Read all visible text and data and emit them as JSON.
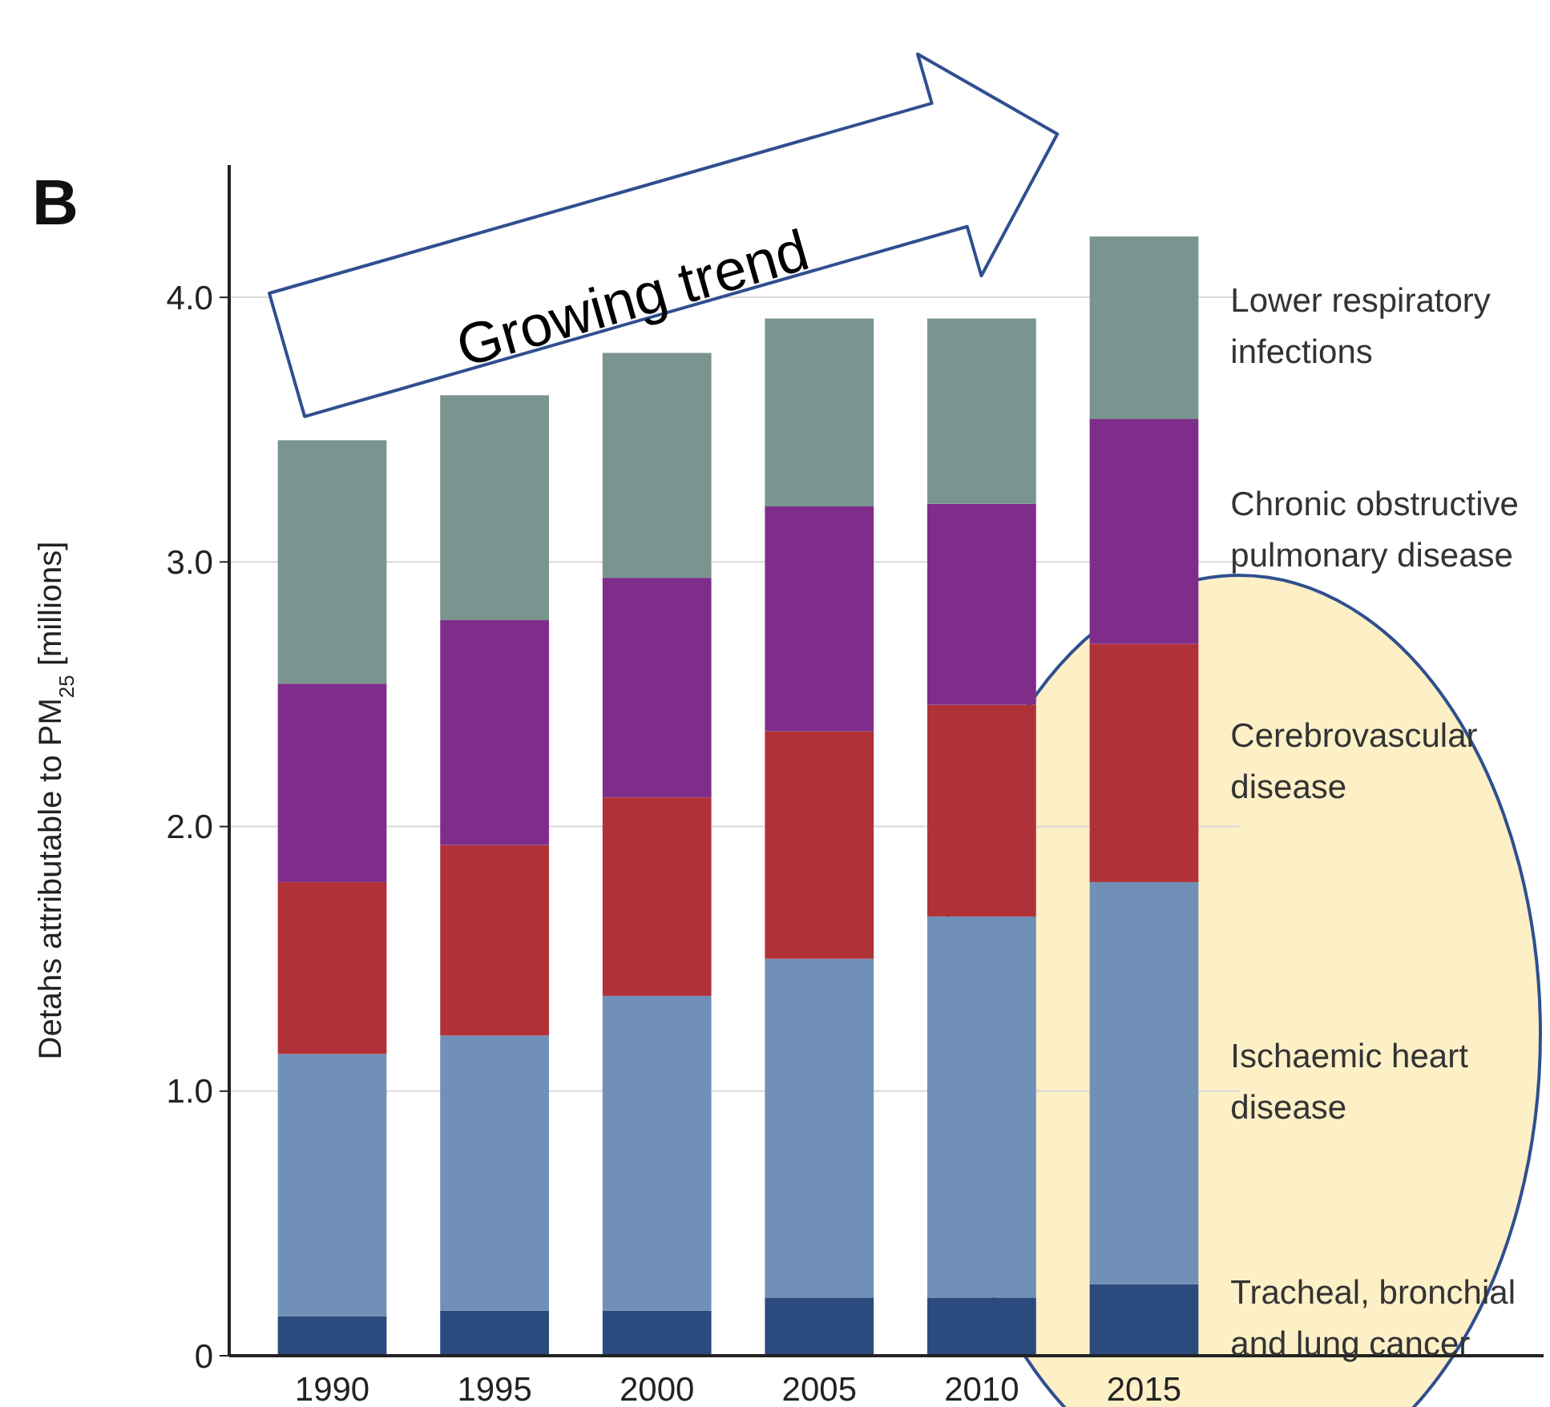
{
  "chart_data": {
    "type": "bar",
    "title": "B",
    "ylabel": "Detahs attributable to PM$_{25}$ [millions]",
    "categories": [
      "1990",
      "1995",
      "2000",
      "2005",
      "2010",
      "2015"
    ],
    "stacked": true,
    "series": [
      {
        "name": "Tracheal, bronchial and lung cancer",
        "color": "#2b4a7e",
        "values": [
          0.15,
          0.17,
          0.17,
          0.22,
          0.22,
          0.27
        ]
      },
      {
        "name": "Ischaemic heart disease",
        "color": "#7090b8",
        "values": [
          0.99,
          1.04,
          1.19,
          1.28,
          1.44,
          1.52
        ]
      },
      {
        "name": "Cerebrovascular disease",
        "color": "#b03238",
        "values": [
          0.65,
          0.72,
          0.75,
          0.86,
          0.8,
          0.9
        ]
      },
      {
        "name": "Chronic obstructive pulmonary disease",
        "color": "#7f2d8a",
        "values": [
          0.75,
          0.85,
          0.83,
          0.85,
          0.76,
          0.85
        ]
      },
      {
        "name": "Lower respiratory infections",
        "color": "#7a9490",
        "values": [
          0.92,
          0.85,
          0.85,
          0.71,
          0.7,
          0.69
        ]
      }
    ],
    "ylim": [
      0,
      4.5
    ],
    "yticks": [
      0,
      {
        "value": 1,
        "label": "1.0"
      },
      {
        "value": 2,
        "label": "2.0"
      },
      {
        "value": 3,
        "label": "3.0"
      },
      {
        "value": 4,
        "label": "4.0"
      }
    ],
    "grid": "y",
    "legend": "right",
    "annotations": [
      "Growing trend"
    ]
  }
}
